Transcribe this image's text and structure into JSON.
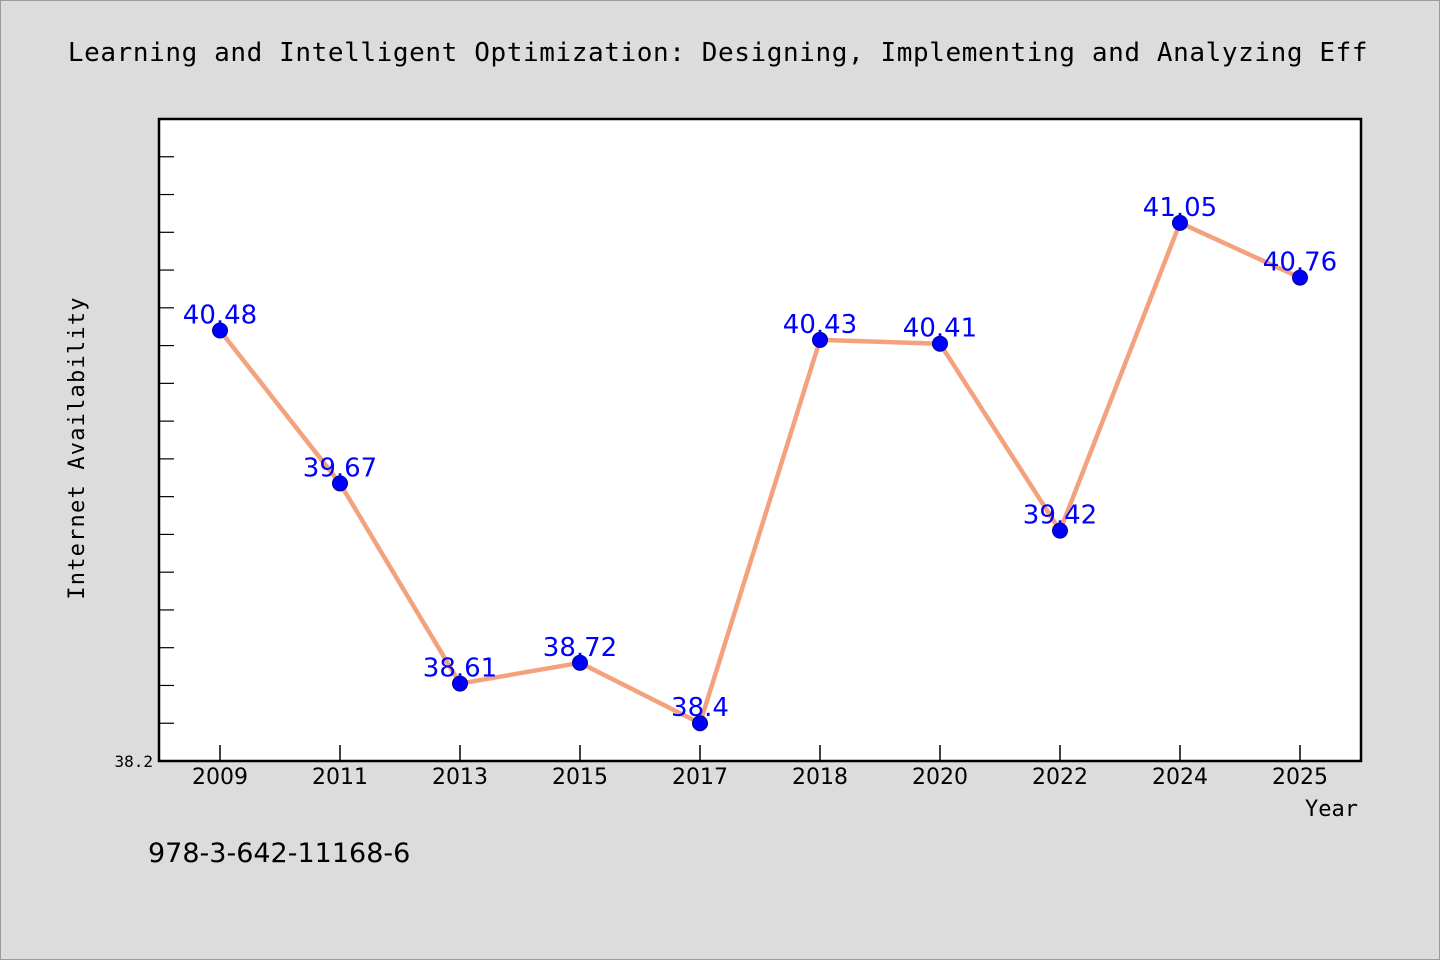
{
  "chart_data": {
    "type": "line",
    "title": "Learning and Intelligent Optimization: Designing, Implementing and Analyzing Eff",
    "xlabel": "Year",
    "ylabel": "Internet Availability",
    "categories": [
      "2009",
      "2011",
      "2013",
      "2015",
      "2017",
      "2018",
      "2020",
      "2022",
      "2024",
      "2025"
    ],
    "series": [
      {
        "values": [
          40.48,
          39.67,
          38.61,
          38.72,
          38.4,
          40.43,
          40.41,
          39.42,
          41.05,
          40.76
        ]
      }
    ],
    "data_labels": [
      "40.48",
      "39.67",
      "38.61",
      "38.72",
      "38.4",
      "40.43",
      "40.41",
      "39.42",
      "41.05",
      "40.76"
    ],
    "ylim": [
      38.2,
      41.6
    ],
    "y_tick_labels": [
      "38.2"
    ],
    "grid": false,
    "colors": {
      "line": "#f4a27e",
      "marker": "#0000ff",
      "label": "#0000ff",
      "background": "#dcdcdc",
      "plot": "#ffffff"
    }
  },
  "footer_text": "978-3-642-11168-6"
}
